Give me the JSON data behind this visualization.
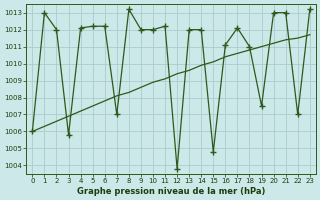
{
  "x": [
    0,
    1,
    2,
    3,
    4,
    5,
    6,
    7,
    8,
    9,
    10,
    11,
    12,
    13,
    14,
    15,
    16,
    17,
    18,
    19,
    20,
    21,
    22,
    23
  ],
  "y_main": [
    1006.0,
    1013.0,
    1012.0,
    1005.8,
    1012.1,
    1012.2,
    1012.2,
    1007.0,
    1013.2,
    1012.0,
    1012.0,
    1012.2,
    1003.8,
    1012.0,
    1012.0,
    1004.8,
    1011.1,
    1012.1,
    1011.0,
    1007.5,
    1013.0,
    1013.0,
    1007.0,
    1013.2
  ],
  "y_trend": [
    1006.0,
    1006.3,
    1006.6,
    1006.9,
    1007.2,
    1007.5,
    1007.8,
    1008.1,
    1008.3,
    1008.6,
    1008.9,
    1009.1,
    1009.4,
    1009.6,
    1009.9,
    1010.1,
    1010.4,
    1010.6,
    1010.8,
    1011.0,
    1011.2,
    1011.4,
    1011.5,
    1011.7
  ],
  "line_color": "#2d5a1b",
  "bg_color": "#cce8e8",
  "grid_color": "#aacccc",
  "text_color": "#1e3d0f",
  "xlabel": "Graphe pression niveau de la mer (hPa)",
  "ylim": [
    1003.5,
    1013.5
  ],
  "xlim": [
    -0.5,
    23.5
  ],
  "yticks": [
    1004,
    1005,
    1006,
    1007,
    1008,
    1009,
    1010,
    1011,
    1012,
    1013
  ],
  "xticks": [
    0,
    1,
    2,
    3,
    4,
    5,
    6,
    7,
    8,
    9,
    10,
    11,
    12,
    13,
    14,
    15,
    16,
    17,
    18,
    19,
    20,
    21,
    22,
    23
  ]
}
